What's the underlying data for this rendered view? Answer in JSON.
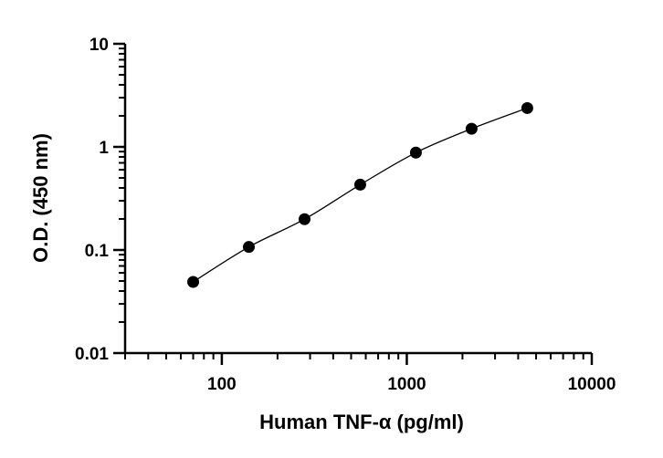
{
  "chart_data": {
    "type": "scatter",
    "title": "",
    "xlabel": "Human TNF-α  (pg/ml)",
    "ylabel": "O.D. (450 nm)",
    "x_scale": "log",
    "y_scale": "log",
    "xlim": [
      30,
      10000
    ],
    "ylim": [
      0.01,
      10
    ],
    "x_ticks": [
      {
        "value": 100,
        "label": "100"
      },
      {
        "value": 1000,
        "label": "1000"
      },
      {
        "value": 10000,
        "label": "10000"
      }
    ],
    "y_ticks": [
      {
        "value": 0.01,
        "label": "0.01"
      },
      {
        "value": 0.1,
        "label": "0.1"
      },
      {
        "value": 1,
        "label": "1"
      },
      {
        "value": 10,
        "label": "10"
      }
    ],
    "grid": false,
    "legend": "none",
    "series": [
      {
        "x": [
          70,
          140,
          280,
          560,
          1120,
          2240,
          4480
        ],
        "y": [
          0.049,
          0.107,
          0.199,
          0.43,
          0.88,
          1.5,
          2.38
        ],
        "marker_color": "#000000",
        "fit_curve": true
      }
    ]
  }
}
